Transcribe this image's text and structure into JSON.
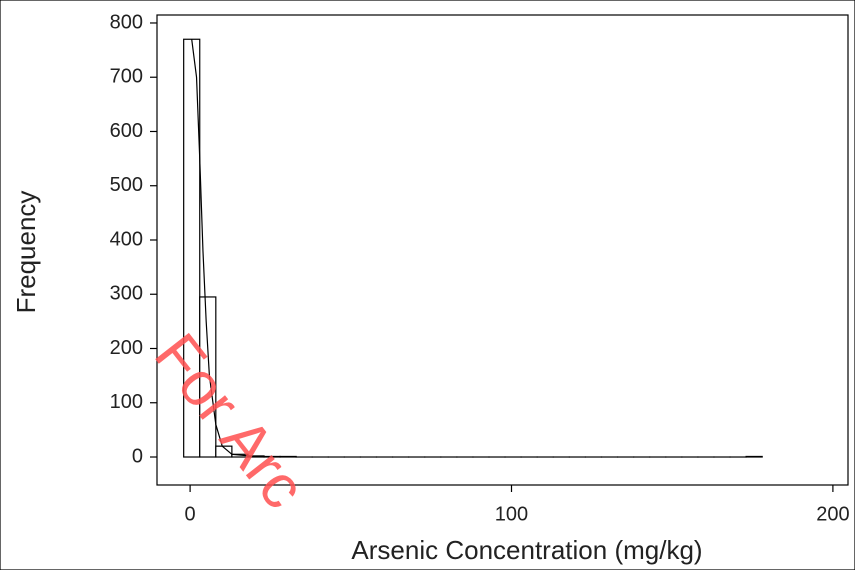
{
  "chart_data": {
    "type": "histogram",
    "xlabel": "Arsenic Concentration (mg/kg)",
    "ylabel": "Frequency",
    "watermark": "For Arc",
    "bins": [
      -2,
      3,
      8,
      13,
      18,
      23,
      28,
      33,
      38,
      43,
      48,
      53,
      58,
      63,
      68,
      73,
      78,
      83,
      88,
      93,
      98,
      103,
      108,
      113,
      118,
      123,
      128,
      133,
      138,
      143,
      148,
      153,
      158,
      163,
      168,
      173,
      178
    ],
    "values": [
      770,
      295,
      20,
      5,
      2,
      1,
      1,
      0,
      0,
      0,
      0,
      0,
      0,
      0,
      0,
      0,
      0,
      0,
      0,
      0,
      0,
      0,
      0,
      0,
      0,
      0,
      0,
      0,
      0,
      0,
      0,
      0,
      0,
      0,
      0,
      1
    ],
    "color": "#ffffff",
    "curve": {
      "x": [
        0.5,
        2,
        3,
        4,
        5,
        6,
        8,
        10,
        13,
        20
      ],
      "y": [
        770,
        700,
        550,
        380,
        250,
        150,
        60,
        20,
        5,
        1
      ]
    },
    "xlim": [
      -10.3,
      204.7
    ],
    "ylim": [
      -51.6,
      814.7
    ],
    "xticks": [
      0,
      100,
      200
    ],
    "yticks": [
      0,
      100,
      200,
      300,
      400,
      500,
      600,
      700,
      800
    ],
    "grid": false
  }
}
